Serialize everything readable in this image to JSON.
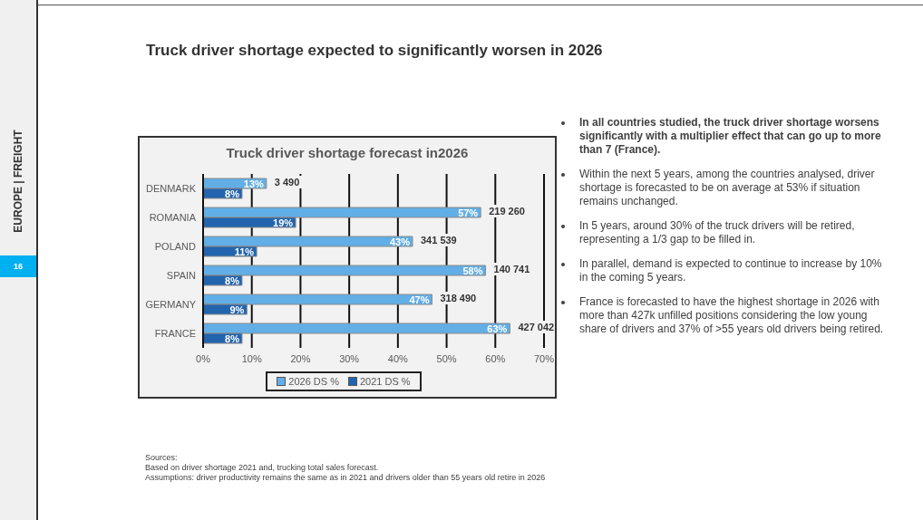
{
  "chart_data": {
    "type": "bar",
    "orientation": "horizontal",
    "title": "Truck driver shortage expected to significantly worsen in 2026",
    "subtitle": "Truck driver shortage forecast in2026",
    "categories": [
      "DENMARK",
      "ROMANIA",
      "POLAND",
      "SPAIN",
      "GERMANY",
      "FRANCE"
    ],
    "series": [
      {
        "name": "2026 DS %",
        "color": "#62aee6",
        "values": [
          13,
          57,
          43,
          58,
          47,
          63
        ],
        "value_labels": [
          "13%",
          "57%",
          "43%",
          "58%",
          "47%",
          "63%"
        ]
      },
      {
        "name": "2021 DS %",
        "color": "#2264ae",
        "values": [
          8,
          19,
          11,
          8,
          9,
          8
        ],
        "value_labels": [
          "8%",
          "19%",
          "11%",
          "8%",
          "9%",
          "8%"
        ]
      }
    ],
    "xlim": [
      0,
      70
    ],
    "xticks": [
      {
        "value": 0,
        "label": "0%"
      },
      {
        "value": 10,
        "label": "10%"
      },
      {
        "value": 20,
        "label": "20%"
      },
      {
        "value": 30,
        "label": "30%"
      },
      {
        "value": 40,
        "label": "40%"
      },
      {
        "value": 50,
        "label": "50%"
      },
      {
        "value": 60,
        "label": "60%"
      },
      {
        "value": 70,
        "label": "70%"
      }
    ],
    "grid": "x",
    "legend": "bottom",
    "annotations": [
      "EUROPE | FREIGHT",
      "16",
      "In all countries studied, the truck driver shortage worsens significantly with a multiplier effect that can go up to more than 7 (France).",
      "Within the next 5 years, among the countries analysed, driver shortage is forecasted to be on average at 53% if situation remains unchanged.",
      "In 5 years, around 30% of the truck drivers will be retired, representing a 1/3 gap to be filled in.",
      "In parallel, demand is expected to continue to increase by 10% in the coming 5 years.",
      "France is forecasted to have the highest shortage in 2026 with more than 427k unfilled positions considering the low young share of drivers and 37% of >55 years old drivers being retired.",
      "Sources:",
      "Based on driver shortage 2021 and, trucking total sales forecast.",
      "Assumptions: driver productivity remains the same as in 2021 and drivers older than 55 years old retire in 2026",
      "3 490",
      "219 260",
      "341 539",
      "140 741",
      "318 490",
      "427 042"
    ]
  }
}
